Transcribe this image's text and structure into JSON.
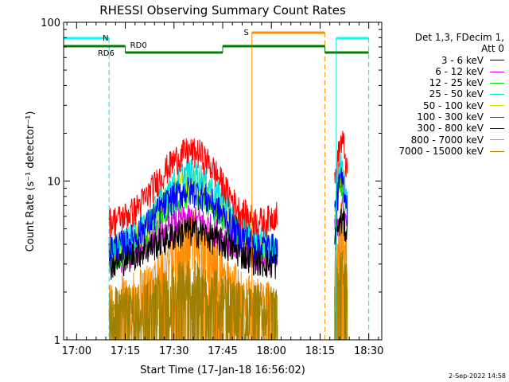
{
  "chart_data": {
    "type": "line",
    "title": "RHESSI Observing Summary Count Rates",
    "xlabel": "Start Time (17-Jan-18 16:56:02)",
    "ylabel": "Count Rate (s⁻¹ detector⁻¹)",
    "y_scale": "log",
    "ylim": [
      1,
      100
    ],
    "xlim_minutes_after_1656": [
      0,
      98
    ],
    "x_ticks": [
      "17:00",
      "17:15",
      "17:30",
      "17:45",
      "18:00",
      "18:15",
      "18:30"
    ],
    "y_ticks": [
      "1",
      "10",
      "100"
    ],
    "legend_header": [
      "Det 1,3, FDecim 1,",
      "Att 0"
    ],
    "series": [
      {
        "name": "3 - 6 keV",
        "color": "#000000",
        "level": [
          3.0,
          3.2,
          3.5,
          3.8,
          4.2,
          4.6,
          4.9,
          4.8,
          4.4,
          4.0,
          3.6,
          3.3,
          3.1,
          3.0
        ]
      },
      {
        "name": "6 - 12 keV",
        "color": "#e000e0",
        "level": [
          3.2,
          3.4,
          3.7,
          4.2,
          4.8,
          5.4,
          5.8,
          5.6,
          5.0,
          4.4,
          3.9,
          3.5,
          3.3,
          3.2
        ]
      },
      {
        "name": "12 - 25 keV",
        "color": "#00e000",
        "level": [
          3.4,
          3.7,
          4.2,
          5.0,
          6.2,
          7.6,
          8.6,
          8.2,
          7.0,
          5.8,
          4.8,
          4.1,
          3.7,
          3.5
        ]
      },
      {
        "name": "25 - 50 keV",
        "color": "#00e0e0",
        "level": [
          3.6,
          4.0,
          4.7,
          5.8,
          7.6,
          9.8,
          11.5,
          10.8,
          9.0,
          7.2,
          5.6,
          4.6,
          4.0,
          3.7
        ]
      },
      {
        "name": "50 - 100 keV",
        "color": "#e0e000",
        "level": [
          3.5,
          3.8,
          4.4,
          5.4,
          7.0,
          8.8,
          10.2,
          9.6,
          8.0,
          6.4,
          5.0,
          4.2,
          3.8,
          3.6
        ]
      },
      {
        "name": "100 - 300 keV",
        "color": "#ff0000",
        "level": [
          5.6,
          5.9,
          6.6,
          8.2,
          10.8,
          13.5,
          15.5,
          15.0,
          12.0,
          8.8,
          6.6,
          5.8,
          5.5,
          6.5
        ]
      },
      {
        "name": "300 - 800 keV",
        "color": "#0000ff",
        "level": [
          3.8,
          4.0,
          4.5,
          5.4,
          6.8,
          8.0,
          8.8,
          8.4,
          7.2,
          5.8,
          4.7,
          4.1,
          3.9,
          3.8
        ]
      },
      {
        "name": "800 - 7000 keV",
        "color": "#ff8c00",
        "level": [
          1.6,
          1.7,
          1.8,
          2.1,
          2.6,
          3.4,
          4.6,
          4.4,
          3.4,
          2.4,
          1.9,
          1.7,
          1.6,
          1.6
        ]
      },
      {
        "name": "7000 - 15000 keV",
        "color": "#a08000",
        "level": [
          1.4,
          1.5,
          1.5,
          1.6,
          1.8,
          2.0,
          2.2,
          2.1,
          1.9,
          1.7,
          1.6,
          1.5,
          1.5,
          1.4
        ]
      }
    ],
    "data_segments_minutes": [
      [
        14,
        66
      ],
      [
        83.5,
        87.5
      ]
    ],
    "second_segment_scale": 1.0,
    "flag_labels": {
      "N": "N",
      "S": "S",
      "RD6": "RD6",
      "RD0": "RD0"
    },
    "flags": {
      "night_cyan_top": [
        [
          0,
          14
        ],
        [
          84,
          94
        ]
      ],
      "night_cyan_vlines_solid": [
        0,
        84
      ],
      "night_cyan_vlines_dashed": [
        14,
        94
      ],
      "saa_orange_top": [
        [
          58,
          80.5
        ]
      ],
      "saa_orange_vline_solid": 58,
      "saa_orange_vline_dashed": 80.5,
      "decimation_green_high": [
        [
          0,
          19
        ],
        [
          49,
          80.5
        ]
      ],
      "decimation_green_low": [
        [
          19,
          49
        ],
        [
          80.5,
          94
        ]
      ]
    },
    "grid": false
  },
  "footer_date": "2-Sep-2022 14:58"
}
